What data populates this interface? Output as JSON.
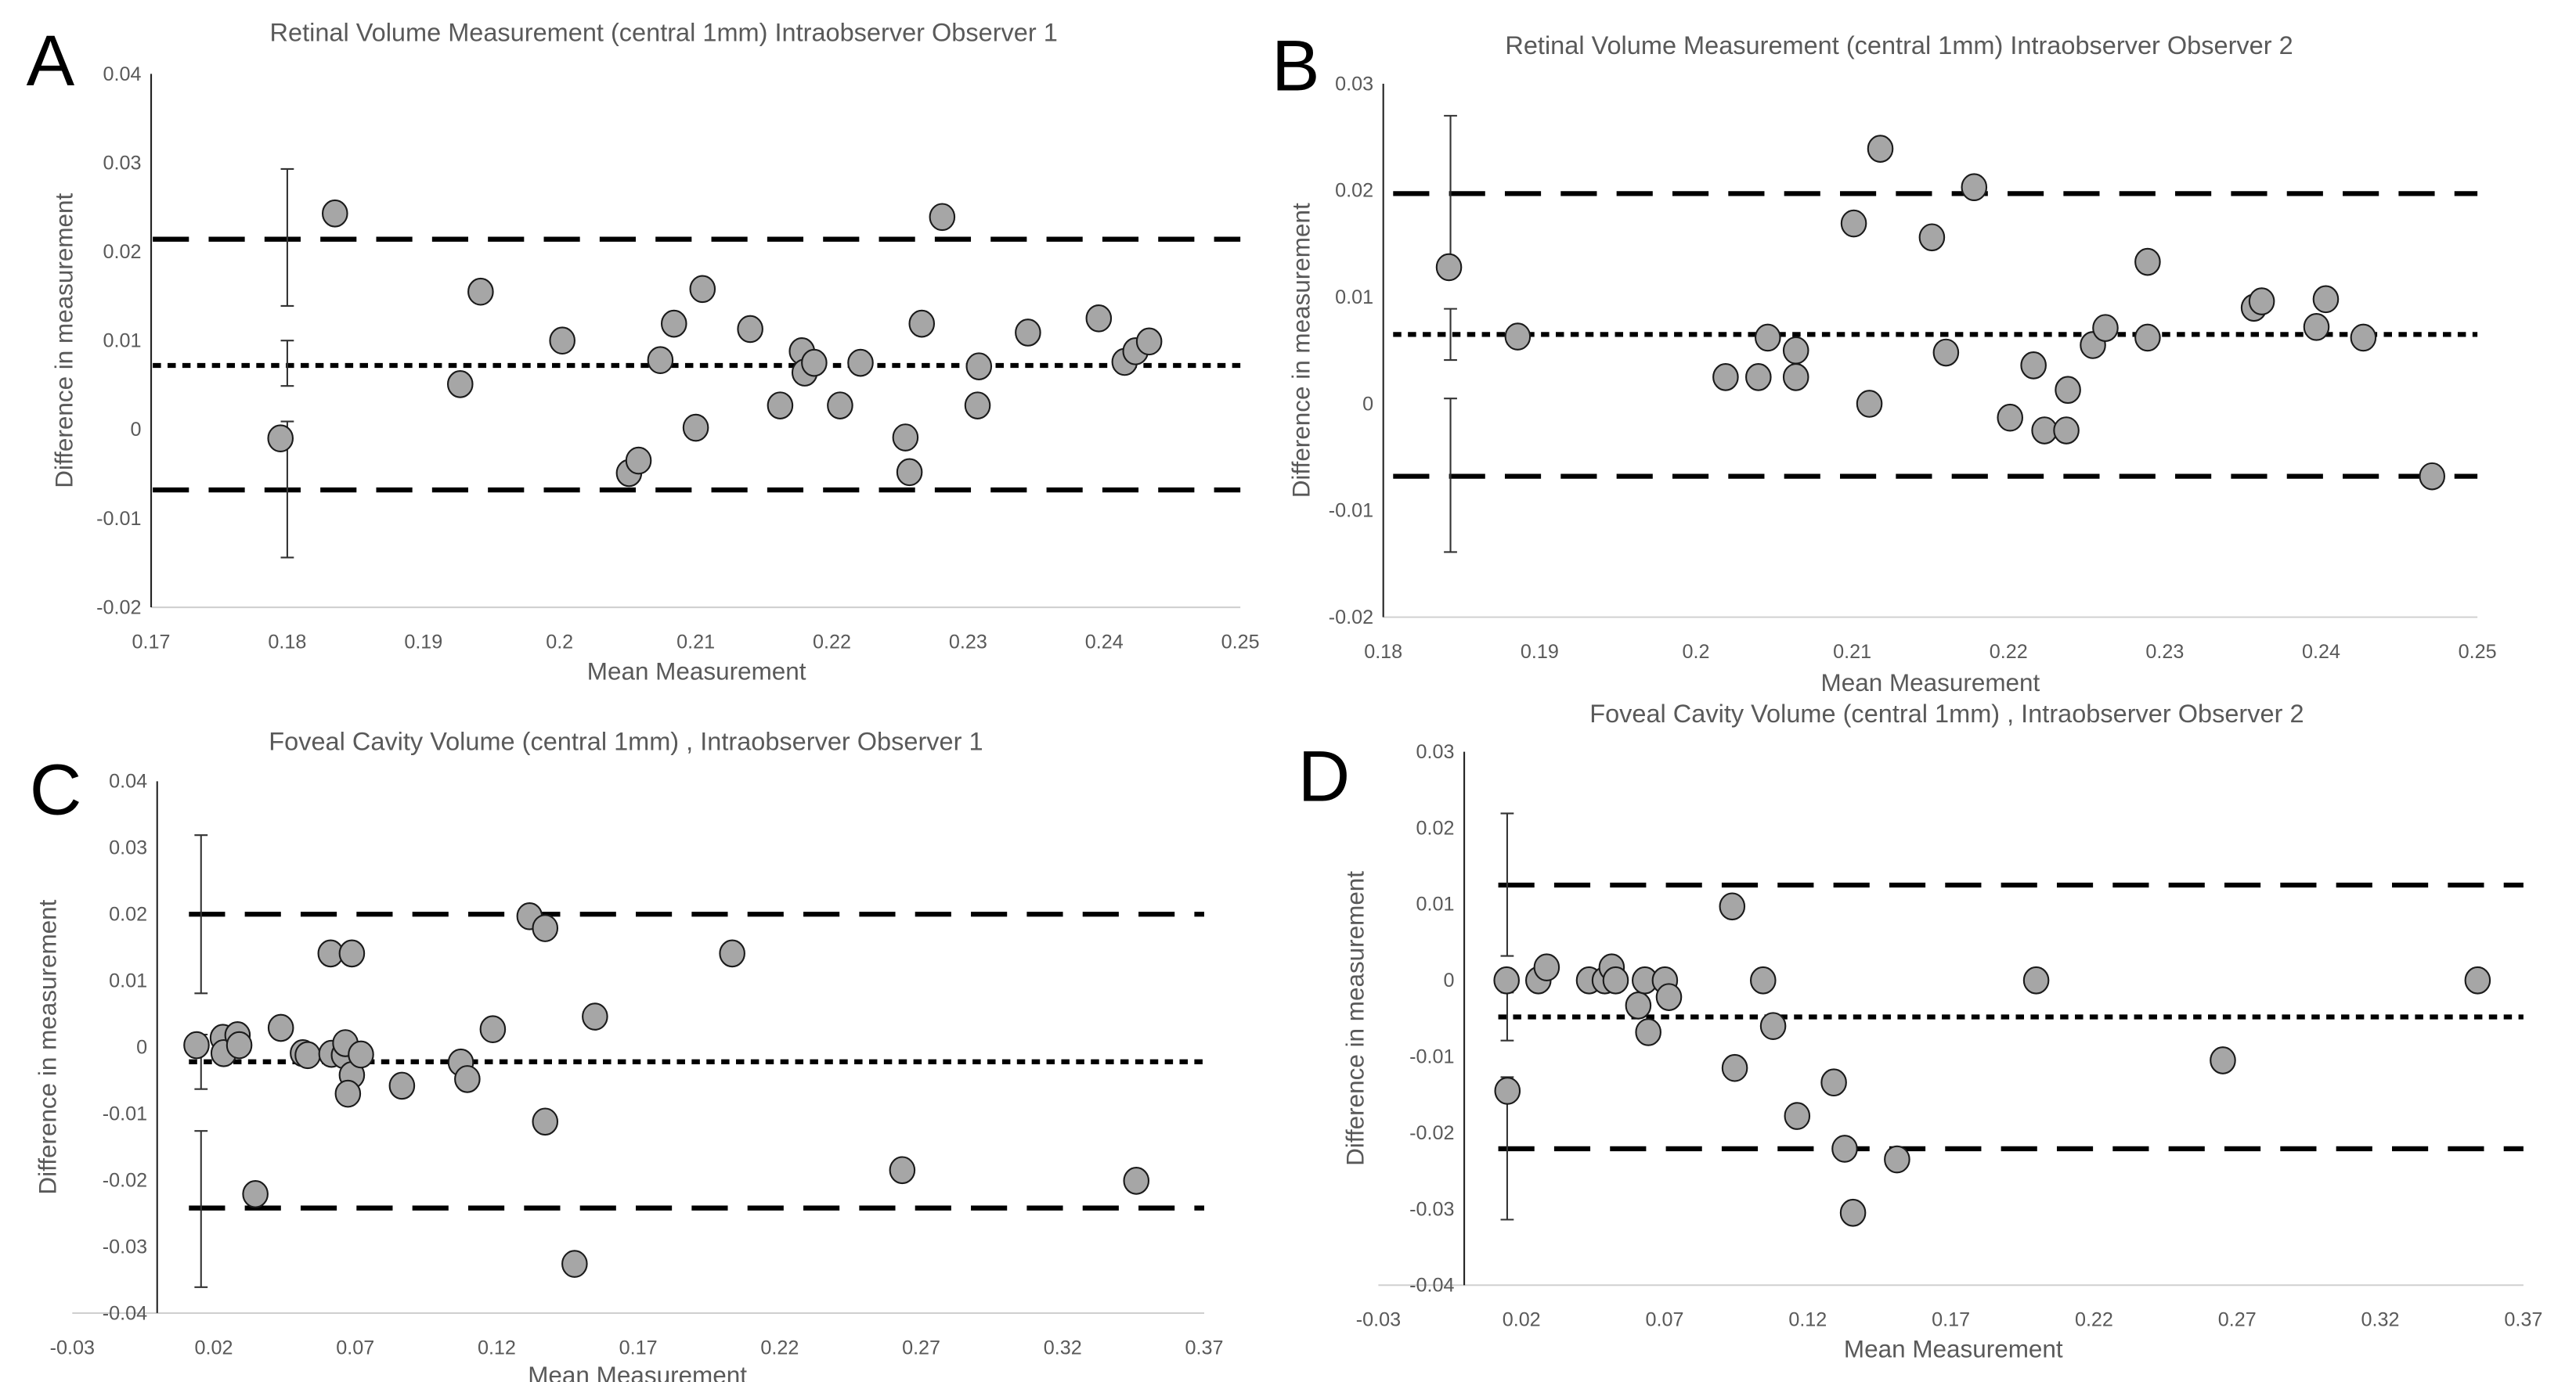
{
  "chart_data": [
    {
      "type": "scatter",
      "panel_label": "A",
      "title": "Retinal Volume Measurement (central 1mm) Intraobserver Observer 1",
      "xlabel": "Mean Measurement",
      "ylabel": "Difference in measurement",
      "xlim": [
        0.17,
        0.25
      ],
      "ylim": [
        -0.02,
        0.04
      ],
      "x_ticks": [
        "0.17",
        "0.18",
        "0.19",
        "0.2",
        "0.21",
        "0.22",
        "0.23",
        "0.24",
        "0.25"
      ],
      "y_ticks": [
        "0.04",
        "0.03",
        "0.02",
        "0.01",
        "0",
        "-0.01",
        "-0.02"
      ],
      "grid": false,
      "mean_difference": 0.0072,
      "upper_limit_of_agreement": 0.0214,
      "lower_limit_of_agreement": -0.0068,
      "confidence_intervals": {
        "x": 0.18,
        "upper": [
          0.0139,
          0.0293
        ],
        "mean": [
          0.0049,
          0.01
        ],
        "lower": [
          -0.0144,
          0.0009
        ]
      },
      "points": [
        [
          0.1835,
          0.0243
        ],
        [
          0.1795,
          -0.001
        ],
        [
          0.1927,
          0.0051
        ],
        [
          0.1942,
          0.0155
        ],
        [
          0.2002,
          0.01
        ],
        [
          0.2051,
          -0.0049
        ],
        [
          0.2058,
          -0.0035
        ],
        [
          0.2074,
          0.0078
        ],
        [
          0.2084,
          0.0119
        ],
        [
          0.21,
          0.0002
        ],
        [
          0.2105,
          0.0158
        ],
        [
          0.214,
          0.0113
        ],
        [
          0.2162,
          0.0027
        ],
        [
          0.2178,
          0.0088
        ],
        [
          0.218,
          0.0064
        ],
        [
          0.2187,
          0.0075
        ],
        [
          0.2206,
          0.0027
        ],
        [
          0.2221,
          0.0075
        ],
        [
          0.2254,
          -0.0009
        ],
        [
          0.2257,
          -0.0048
        ],
        [
          0.2266,
          0.0119
        ],
        [
          0.2281,
          0.0239
        ],
        [
          0.2307,
          0.0027
        ],
        [
          0.2308,
          0.0071
        ],
        [
          0.2344,
          0.0109
        ],
        [
          0.2396,
          0.0125
        ],
        [
          0.2415,
          0.0076
        ],
        [
          0.2423,
          0.0088
        ],
        [
          0.2433,
          0.0099
        ]
      ]
    },
    {
      "type": "scatter",
      "panel_label": "B",
      "title": "Retinal Volume Measurement (central 1mm) Intraobserver Observer 2",
      "xlabel": "Mean Measurement",
      "ylabel": "Difference in measurement",
      "xlim": [
        0.18,
        0.25
      ],
      "ylim": [
        -0.02,
        0.03
      ],
      "x_ticks": [
        "0.18",
        "0.19",
        "0.2",
        "0.21",
        "0.22",
        "0.23",
        "0.24",
        "0.25"
      ],
      "y_ticks": [
        "0.03",
        "0.02",
        "0.01",
        "0",
        "-0.01",
        "-0.02"
      ],
      "grid": false,
      "mean_difference": 0.0065,
      "upper_limit_of_agreement": 0.0197,
      "lower_limit_of_agreement": -0.0068,
      "confidence_intervals": {
        "x": 0.1843,
        "upper": [
          0.0123,
          0.027
        ],
        "mean": [
          0.0041,
          0.0089
        ],
        "lower": [
          -0.0139,
          0.0005
        ]
      },
      "points": [
        [
          0.1842,
          0.0128
        ],
        [
          0.1886,
          0.0063
        ],
        [
          0.2019,
          0.0025
        ],
        [
          0.204,
          0.0025
        ],
        [
          0.2046,
          0.0062
        ],
        [
          0.2064,
          0.005
        ],
        [
          0.2064,
          0.0025
        ],
        [
          0.2101,
          0.0169
        ],
        [
          0.2111,
          0.0
        ],
        [
          0.2118,
          0.0239
        ],
        [
          0.2151,
          0.0156
        ],
        [
          0.216,
          0.0048
        ],
        [
          0.2178,
          0.0203
        ],
        [
          0.2201,
          -0.0013
        ],
        [
          0.2216,
          0.0036
        ],
        [
          0.2223,
          -0.0025
        ],
        [
          0.2237,
          -0.0025
        ],
        [
          0.2238,
          0.0013
        ],
        [
          0.2254,
          0.0055
        ],
        [
          0.2262,
          0.0071
        ],
        [
          0.2289,
          0.0133
        ],
        [
          0.2289,
          0.0062
        ],
        [
          0.2357,
          0.009
        ],
        [
          0.2362,
          0.0096
        ],
        [
          0.2397,
          0.0072
        ],
        [
          0.2403,
          0.0098
        ],
        [
          0.2427,
          0.0062
        ],
        [
          0.2471,
          -0.0068
        ]
      ]
    },
    {
      "type": "scatter",
      "panel_label": "C",
      "title": "Foveal Cavity Volume (central 1mm) , Intraobserver Observer 1",
      "xlabel": "Mean Measurement",
      "ylabel": "Difference in measurement",
      "xlim": [
        -0.03,
        0.37
      ],
      "ylim": [
        -0.04,
        0.04
      ],
      "x_ticks": [
        "-0.03",
        "0.02",
        "0.07",
        "0.12",
        "0.17",
        "0.22",
        "0.27",
        "0.32",
        "0.37"
      ],
      "y_ticks": [
        "0.04",
        "0.03",
        "0.02",
        "0.01",
        "0",
        "-0.01",
        "-0.02",
        "-0.03",
        "-0.04"
      ],
      "grid": false,
      "mean_difference": -0.0022,
      "upper_limit_of_agreement": 0.02,
      "lower_limit_of_agreement": -0.0242,
      "confidence_intervals": {
        "x": 0.0155,
        "upper": [
          0.0081,
          0.0319
        ],
        "mean": [
          -0.0063,
          0.0019
        ],
        "lower": [
          -0.0361,
          -0.0126
        ]
      },
      "points": [
        [
          0.0139,
          0.0003
        ],
        [
          0.0232,
          0.0014
        ],
        [
          0.0235,
          -0.0009
        ],
        [
          0.0284,
          0.0018
        ],
        [
          0.029,
          0.0003
        ],
        [
          0.0347,
          -0.0221
        ],
        [
          0.0437,
          0.0029
        ],
        [
          0.0515,
          -0.0009
        ],
        [
          0.0532,
          -0.0012
        ],
        [
          0.0613,
          0.0141
        ],
        [
          0.0616,
          -0.001
        ],
        [
          0.066,
          -0.0012
        ],
        [
          0.0665,
          0.0006
        ],
        [
          0.0688,
          0.0141
        ],
        [
          0.0688,
          -0.0042
        ],
        [
          0.0674,
          -0.007
        ],
        [
          0.072,
          -0.0011
        ],
        [
          0.0865,
          -0.0058
        ],
        [
          0.1073,
          -0.0023
        ],
        [
          0.1096,
          -0.0048
        ],
        [
          0.1186,
          0.0027
        ],
        [
          0.1316,
          0.0197
        ],
        [
          0.1371,
          0.0179
        ],
        [
          0.1371,
          -0.0112
        ],
        [
          0.1475,
          -0.0326
        ],
        [
          0.1547,
          0.0046
        ],
        [
          0.2032,
          0.0141
        ],
        [
          0.2633,
          -0.0185
        ],
        [
          0.346,
          -0.0201
        ]
      ]
    },
    {
      "type": "scatter",
      "panel_label": "D",
      "title": "Foveal Cavity Volume (central 1mm) , Intraobserver Observer 2",
      "xlabel": "Mean Measurement",
      "ylabel": "Difference in measurement",
      "xlim": [
        -0.03,
        0.37
      ],
      "ylim": [
        -0.04,
        0.03
      ],
      "x_ticks": [
        "-0.03",
        "0.02",
        "0.07",
        "0.12",
        "0.17",
        "0.22",
        "0.27",
        "0.32",
        "0.37"
      ],
      "y_ticks": [
        "0.03",
        "0.02",
        "0.01",
        "0",
        "-0.01",
        "-0.02",
        "-0.03",
        "-0.04"
      ],
      "grid": false,
      "mean_difference": -0.0048,
      "upper_limit_of_agreement": 0.0125,
      "lower_limit_of_agreement": -0.0221,
      "confidence_intervals": {
        "x": 0.015,
        "upper": [
          0.0032,
          0.0219
        ],
        "mean": [
          -0.0079,
          -0.0016
        ],
        "lower": [
          -0.0314,
          -0.0127
        ]
      },
      "points": [
        [
          0.0148,
          0.0
        ],
        [
          0.0151,
          -0.0145
        ],
        [
          0.0259,
          0.0
        ],
        [
          0.0288,
          0.0017
        ],
        [
          0.0436,
          0.0
        ],
        [
          0.0491,
          0.0
        ],
        [
          0.0515,
          0.0017
        ],
        [
          0.0529,
          0.0
        ],
        [
          0.0608,
          -0.0033
        ],
        [
          0.0631,
          0.0
        ],
        [
          0.0643,
          -0.0068
        ],
        [
          0.0701,
          0.0
        ],
        [
          0.0715,
          -0.0022
        ],
        [
          0.0936,
          0.0097
        ],
        [
          0.0945,
          -0.0115
        ],
        [
          0.1044,
          0.0
        ],
        [
          0.1079,
          -0.006
        ],
        [
          0.1163,
          -0.0178
        ],
        [
          0.1291,
          -0.0134
        ],
        [
          0.1329,
          -0.0221
        ],
        [
          0.1358,
          -0.0305
        ],
        [
          0.1512,
          -0.0235
        ],
        [
          0.1998,
          0.0
        ],
        [
          0.265,
          -0.0105
        ],
        [
          0.354,
          0.0
        ]
      ]
    }
  ],
  "colors": {
    "marker_fill": "#a6a6a6",
    "marker_edge": "#1a1a1a",
    "lines": "#000000",
    "text": "#595959"
  }
}
